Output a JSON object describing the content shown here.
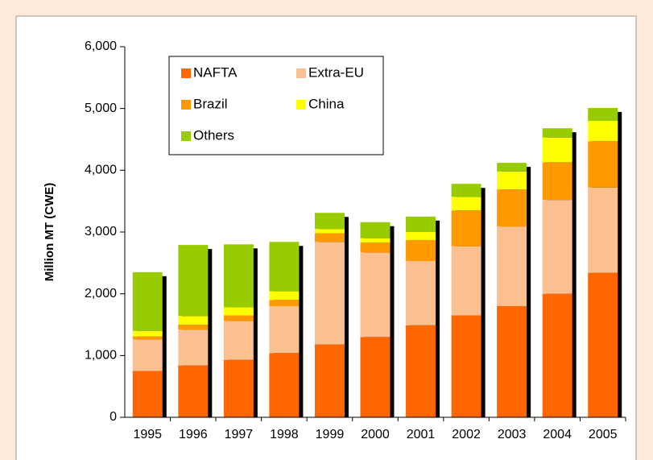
{
  "chart_data": {
    "type": "stacked_bar",
    "y_label": "Million MT (CWE)",
    "categories": [
      "1995",
      "1996",
      "1997",
      "1998",
      "1999",
      "2000",
      "2001",
      "2002",
      "2003",
      "2004",
      "2005"
    ],
    "series": [
      {
        "name": "NAFTA",
        "color": "#ff6600",
        "values": [
          750,
          840,
          930,
          1040,
          1180,
          1300,
          1490,
          1650,
          1800,
          2000,
          2340
        ]
      },
      {
        "name": "Extra-EU",
        "color": "#fac090",
        "values": [
          510,
          580,
          630,
          760,
          1660,
          1370,
          1040,
          1120,
          1290,
          1520,
          1380
        ]
      },
      {
        "name": "Brazil",
        "color": "#ff9900",
        "values": [
          50,
          80,
          90,
          100,
          140,
          160,
          340,
          580,
          600,
          610,
          750
        ]
      },
      {
        "name": "China",
        "color": "#ffff00",
        "values": [
          90,
          140,
          130,
          140,
          70,
          70,
          130,
          220,
          290,
          400,
          330
        ]
      },
      {
        "name": "Others",
        "color": "#99cc00",
        "values": [
          950,
          1150,
          1020,
          800,
          260,
          260,
          250,
          210,
          140,
          150,
          210
        ]
      }
    ],
    "ylim": [
      0,
      6000
    ],
    "yticks": [
      0,
      {
        "value": 1000,
        "label": "1,000"
      },
      {
        "value": 2000,
        "label": "2,000"
      },
      {
        "value": 3000,
        "label": "3,000"
      },
      {
        "value": 4000,
        "label": "4,000"
      },
      {
        "value": 5000,
        "label": "5,000"
      },
      {
        "value": 6000,
        "label": "6,000"
      }
    ]
  }
}
